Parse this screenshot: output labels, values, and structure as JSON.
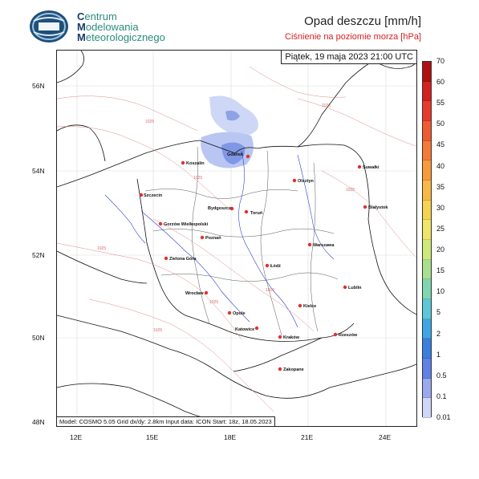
{
  "org": {
    "line1_initial": "C",
    "line1_rest": "entrum",
    "line2_initial": "M",
    "line2_rest": "odelowania",
    "line3_initial": "M",
    "line3_rest": "eteorologicznego"
  },
  "title": "Opad deszczu [mm/h]",
  "subtitle": "Ciśnienie na poziomie morza [hPa]",
  "valid_time": "Piątek, 19 maja 2023 21:00 UTC",
  "model_info": "Model: COSMO 5.05  Grid dx/dy: 2.8km  Input data: ICON  Start: 18z, 18.05.2023",
  "lat_ticks": [
    "56N",
    "54N",
    "52N",
    "50N",
    "48N"
  ],
  "lon_ticks": [
    "12E",
    "15E",
    "18E",
    "21E",
    "24E"
  ],
  "cities": [
    {
      "name": "Gdańsk"
    },
    {
      "name": "Koszalin"
    },
    {
      "name": "Szczecin"
    },
    {
      "name": "Suwałki"
    },
    {
      "name": "Olsztyn"
    },
    {
      "name": "Białystok"
    },
    {
      "name": "Bydgoszcz"
    },
    {
      "name": "Toruń"
    },
    {
      "name": "Gorzów Wielkopolski"
    },
    {
      "name": "Poznań"
    },
    {
      "name": "Warszawa"
    },
    {
      "name": "Zielona Góra"
    },
    {
      "name": "Łódź"
    },
    {
      "name": "Lublin"
    },
    {
      "name": "Wrocław"
    },
    {
      "name": "Kielce"
    },
    {
      "name": "Opole"
    },
    {
      "name": "Katowice"
    },
    {
      "name": "Kraków"
    },
    {
      "name": "Rzeszów"
    },
    {
      "name": "Zakopane"
    }
  ],
  "isobar_labels": [
    "1025",
    "1025",
    "1025",
    "1025",
    "1025",
    "1025",
    "1025",
    "1025"
  ],
  "colorbar": {
    "labels": [
      "70",
      "60",
      "55",
      "50",
      "45",
      "40",
      "35",
      "30",
      "25",
      "20",
      "15",
      "10",
      "5",
      "2",
      "1",
      "0.5",
      "0.1",
      "0.01"
    ],
    "colors": [
      "#b01010",
      "#d42020",
      "#e83a2a",
      "#f05a30",
      "#f57a35",
      "#f89a3a",
      "#f9b845",
      "#f6d34f",
      "#eee569",
      "#cfe87a",
      "#a8e08f",
      "#7fd6b0",
      "#5bc7d8",
      "#3fa6e6",
      "#3a7fe0",
      "#5e82e8",
      "#9aa9ef",
      "#cfd6f8"
    ],
    "accent": "#e03030"
  }
}
